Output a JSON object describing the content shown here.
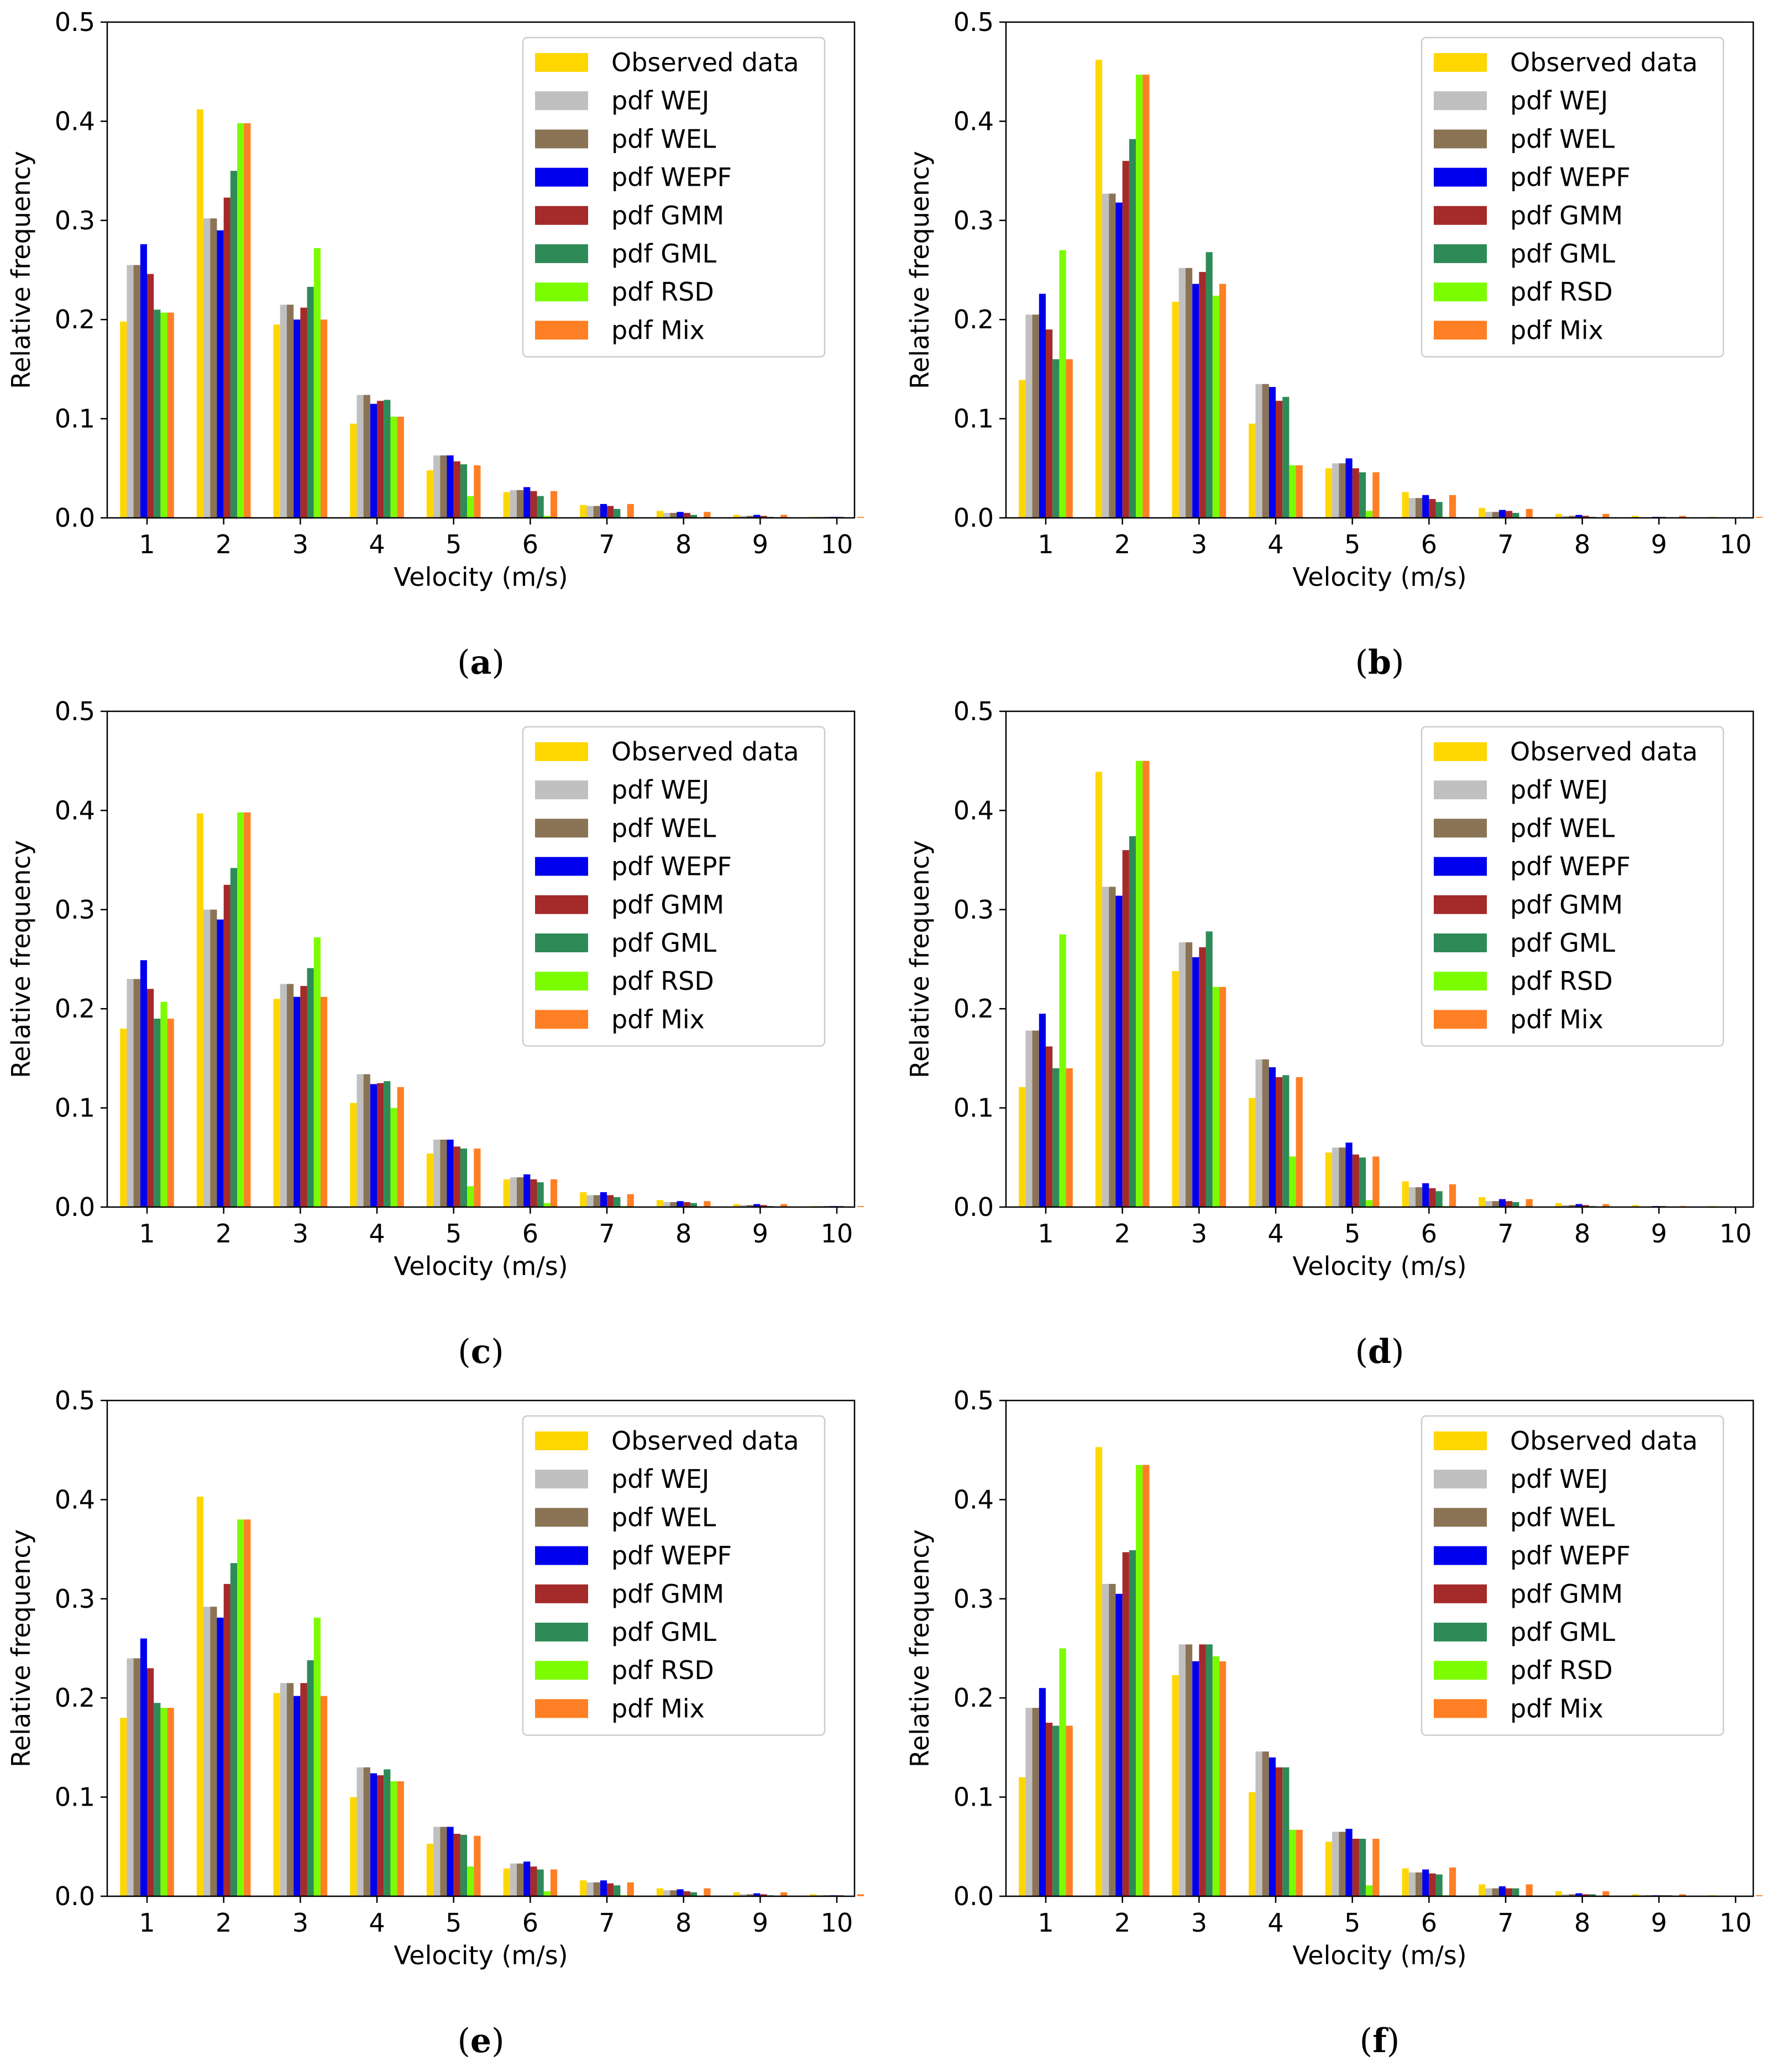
{
  "series_names": [
    "Observed data",
    "pdf WEJ",
    "pdf WEL",
    "pdf WEPF",
    "pdf GMM",
    "pdf GML",
    "pdf RSD",
    "pdf Mix"
  ],
  "series_colors": [
    "#FFD700",
    "#C0C0C0",
    "#8B7355",
    "#0000EE",
    "#A52A2A",
    "#2E8B57",
    "#7CFC00",
    "#FF7F24"
  ],
  "chart_data": [
    {
      "type": "bar",
      "caption": "(a)",
      "xlabel": "Velocity (m/s)",
      "ylabel": "Relative frequency",
      "ylim": [
        0,
        0.5
      ],
      "yticks": [
        "0.0",
        "0.1",
        "0.2",
        "0.3",
        "0.4",
        "0.5"
      ],
      "categories": [
        "1",
        "2",
        "3",
        "4",
        "5",
        "6",
        "7",
        "8",
        "9",
        "10"
      ],
      "legend": "top-right",
      "series": [
        {
          "name": "Observed data",
          "values": [
            0.198,
            0.412,
            0.195,
            0.095,
            0.048,
            0.026,
            0.013,
            0.007,
            0.003,
            0.001
          ]
        },
        {
          "name": "pdf WEJ",
          "values": [
            0.255,
            0.302,
            0.215,
            0.124,
            0.063,
            0.028,
            0.012,
            0.005,
            0.002,
            0.001
          ]
        },
        {
          "name": "pdf WEL",
          "values": [
            0.255,
            0.302,
            0.215,
            0.124,
            0.063,
            0.028,
            0.012,
            0.005,
            0.002,
            0.001
          ]
        },
        {
          "name": "pdf WEPF",
          "values": [
            0.276,
            0.29,
            0.2,
            0.115,
            0.063,
            0.031,
            0.014,
            0.006,
            0.003,
            0.001
          ]
        },
        {
          "name": "pdf GMM",
          "values": [
            0.246,
            0.323,
            0.212,
            0.118,
            0.057,
            0.027,
            0.012,
            0.005,
            0.002,
            0.001
          ]
        },
        {
          "name": "pdf GML",
          "values": [
            0.21,
            0.35,
            0.233,
            0.119,
            0.054,
            0.022,
            0.009,
            0.003,
            0.001,
            0.0005
          ]
        },
        {
          "name": "pdf RSD",
          "values": [
            0.207,
            0.398,
            0.272,
            0.102,
            0.022,
            0.002,
            0.0005,
            0,
            0,
            0
          ]
        },
        {
          "name": "pdf Mix",
          "values": [
            0.207,
            0.398,
            0.2,
            0.102,
            0.053,
            0.027,
            0.014,
            0.006,
            0.003,
            0.001
          ]
        }
      ]
    },
    {
      "type": "bar",
      "caption": "(b)",
      "xlabel": "Velocity (m/s)",
      "ylabel": "Relative frequency",
      "ylim": [
        0,
        0.5
      ],
      "yticks": [
        "0.0",
        "0.1",
        "0.2",
        "0.3",
        "0.4",
        "0.5"
      ],
      "categories": [
        "1",
        "2",
        "3",
        "4",
        "5",
        "6",
        "7",
        "8",
        "9",
        "10"
      ],
      "legend": "top-right",
      "series": [
        {
          "name": "Observed data",
          "values": [
            0.139,
            0.462,
            0.218,
            0.095,
            0.05,
            0.026,
            0.01,
            0.004,
            0.002,
            0.001
          ]
        },
        {
          "name": "pdf WEJ",
          "values": [
            0.205,
            0.327,
            0.252,
            0.135,
            0.055,
            0.02,
            0.006,
            0.002,
            0.0005,
            0
          ]
        },
        {
          "name": "pdf WEL",
          "values": [
            0.205,
            0.327,
            0.252,
            0.135,
            0.055,
            0.02,
            0.006,
            0.002,
            0.0005,
            0
          ]
        },
        {
          "name": "pdf WEPF",
          "values": [
            0.226,
            0.318,
            0.236,
            0.132,
            0.06,
            0.023,
            0.008,
            0.003,
            0.001,
            0
          ]
        },
        {
          "name": "pdf GMM",
          "values": [
            0.19,
            0.36,
            0.248,
            0.118,
            0.05,
            0.019,
            0.007,
            0.002,
            0.001,
            0
          ]
        },
        {
          "name": "pdf GML",
          "values": [
            0.16,
            0.382,
            0.268,
            0.122,
            0.046,
            0.016,
            0.005,
            0.001,
            0,
            0
          ]
        },
        {
          "name": "pdf RSD",
          "values": [
            0.27,
            0.447,
            0.224,
            0.053,
            0.007,
            0.001,
            0,
            0,
            0,
            0
          ]
        },
        {
          "name": "pdf Mix",
          "values": [
            0.16,
            0.447,
            0.236,
            0.053,
            0.046,
            0.023,
            0.009,
            0.004,
            0.002,
            0.001
          ]
        }
      ]
    },
    {
      "type": "bar",
      "caption": "(c)",
      "xlabel": "Velocity (m/s)",
      "ylabel": "Relative frequency",
      "ylim": [
        0,
        0.5
      ],
      "yticks": [
        "0.0",
        "0.1",
        "0.2",
        "0.3",
        "0.4",
        "0.5"
      ],
      "categories": [
        "1",
        "2",
        "3",
        "4",
        "5",
        "6",
        "7",
        "8",
        "9",
        "10"
      ],
      "legend": "top-right",
      "series": [
        {
          "name": "Observed data",
          "values": [
            0.18,
            0.397,
            0.21,
            0.105,
            0.054,
            0.028,
            0.015,
            0.007,
            0.003,
            0.001
          ]
        },
        {
          "name": "pdf WEJ",
          "values": [
            0.23,
            0.3,
            0.225,
            0.134,
            0.068,
            0.03,
            0.012,
            0.005,
            0.002,
            0.001
          ]
        },
        {
          "name": "pdf WEL",
          "values": [
            0.23,
            0.3,
            0.225,
            0.134,
            0.068,
            0.03,
            0.012,
            0.005,
            0.002,
            0.001
          ]
        },
        {
          "name": "pdf WEPF",
          "values": [
            0.249,
            0.29,
            0.212,
            0.124,
            0.068,
            0.033,
            0.015,
            0.006,
            0.003,
            0.001
          ]
        },
        {
          "name": "pdf GMM",
          "values": [
            0.22,
            0.325,
            0.223,
            0.125,
            0.061,
            0.028,
            0.012,
            0.005,
            0.002,
            0.001
          ]
        },
        {
          "name": "pdf GML",
          "values": [
            0.19,
            0.342,
            0.241,
            0.127,
            0.059,
            0.025,
            0.01,
            0.004,
            0.001,
            0.0005
          ]
        },
        {
          "name": "pdf RSD",
          "values": [
            0.207,
            0.398,
            0.272,
            0.1,
            0.021,
            0.004,
            0.001,
            0,
            0,
            0
          ]
        },
        {
          "name": "pdf Mix",
          "values": [
            0.19,
            0.398,
            0.212,
            0.121,
            0.059,
            0.028,
            0.013,
            0.006,
            0.003,
            0.001
          ]
        }
      ]
    },
    {
      "type": "bar",
      "caption": "(d)",
      "xlabel": "Velocity (m/s)",
      "ylabel": "Relative frequency",
      "ylim": [
        0,
        0.5
      ],
      "yticks": [
        "0.0",
        "0.1",
        "0.2",
        "0.3",
        "0.4",
        "0.5"
      ],
      "categories": [
        "1",
        "2",
        "3",
        "4",
        "5",
        "6",
        "7",
        "8",
        "9",
        "10"
      ],
      "legend": "top-right",
      "series": [
        {
          "name": "Observed data",
          "values": [
            0.121,
            0.439,
            0.238,
            0.11,
            0.055,
            0.026,
            0.01,
            0.004,
            0.002,
            0.001
          ]
        },
        {
          "name": "pdf WEJ",
          "values": [
            0.178,
            0.323,
            0.267,
            0.149,
            0.06,
            0.02,
            0.006,
            0.002,
            0.0005,
            0
          ]
        },
        {
          "name": "pdf WEL",
          "values": [
            0.178,
            0.323,
            0.267,
            0.149,
            0.06,
            0.02,
            0.006,
            0.002,
            0.0005,
            0
          ]
        },
        {
          "name": "pdf WEPF",
          "values": [
            0.195,
            0.314,
            0.252,
            0.141,
            0.065,
            0.024,
            0.008,
            0.003,
            0.001,
            0
          ]
        },
        {
          "name": "pdf GMM",
          "values": [
            0.162,
            0.36,
            0.262,
            0.131,
            0.053,
            0.019,
            0.006,
            0.002,
            0.001,
            0
          ]
        },
        {
          "name": "pdf GML",
          "values": [
            0.14,
            0.374,
            0.278,
            0.133,
            0.05,
            0.016,
            0.005,
            0.001,
            0,
            0
          ]
        },
        {
          "name": "pdf RSD",
          "values": [
            0.275,
            0.45,
            0.222,
            0.051,
            0.007,
            0.001,
            0,
            0,
            0,
            0
          ]
        },
        {
          "name": "pdf Mix",
          "values": [
            0.14,
            0.45,
            0.222,
            0.131,
            0.051,
            0.023,
            0.008,
            0.003,
            0.001,
            0
          ]
        }
      ]
    },
    {
      "type": "bar",
      "caption": "(e)",
      "xlabel": "Velocity (m/s)",
      "ylabel": "Relative frequency",
      "ylim": [
        0,
        0.5
      ],
      "yticks": [
        "0.0",
        "0.1",
        "0.2",
        "0.3",
        "0.4",
        "0.5"
      ],
      "categories": [
        "1",
        "2",
        "3",
        "4",
        "5",
        "6",
        "7",
        "8",
        "9",
        "10"
      ],
      "legend": "top-right",
      "series": [
        {
          "name": "Observed data",
          "values": [
            0.18,
            0.403,
            0.205,
            0.1,
            0.053,
            0.028,
            0.016,
            0.008,
            0.004,
            0.002
          ]
        },
        {
          "name": "pdf WEJ",
          "values": [
            0.24,
            0.292,
            0.215,
            0.13,
            0.07,
            0.033,
            0.014,
            0.006,
            0.002,
            0.001
          ]
        },
        {
          "name": "pdf WEL",
          "values": [
            0.24,
            0.292,
            0.215,
            0.13,
            0.07,
            0.033,
            0.014,
            0.006,
            0.002,
            0.001
          ]
        },
        {
          "name": "pdf WEPF",
          "values": [
            0.26,
            0.281,
            0.202,
            0.124,
            0.07,
            0.035,
            0.016,
            0.007,
            0.003,
            0.001
          ]
        },
        {
          "name": "pdf GMM",
          "values": [
            0.23,
            0.315,
            0.215,
            0.122,
            0.063,
            0.03,
            0.013,
            0.005,
            0.002,
            0.001
          ]
        },
        {
          "name": "pdf GML",
          "values": [
            0.195,
            0.336,
            0.238,
            0.128,
            0.062,
            0.027,
            0.011,
            0.004,
            0.001,
            0.0005
          ]
        },
        {
          "name": "pdf RSD",
          "values": [
            0.19,
            0.38,
            0.281,
            0.116,
            0.03,
            0.005,
            0.001,
            0,
            0,
            0
          ]
        },
        {
          "name": "pdf Mix",
          "values": [
            0.19,
            0.38,
            0.202,
            0.116,
            0.061,
            0.027,
            0.014,
            0.008,
            0.004,
            0.002
          ]
        }
      ]
    },
    {
      "type": "bar",
      "caption": "(f)",
      "xlabel": "Velocity (m/s)",
      "ylabel": "Relative frequency",
      "ylim": [
        0,
        0.5
      ],
      "yticks": [
        "0.0",
        "0.1",
        "0.2",
        "0.3",
        "0.4",
        "0.5"
      ],
      "categories": [
        "1",
        "2",
        "3",
        "4",
        "5",
        "6",
        "7",
        "8",
        "9",
        "10"
      ],
      "legend": "top-right",
      "series": [
        {
          "name": "Observed data",
          "values": [
            0.12,
            0.453,
            0.223,
            0.105,
            0.055,
            0.028,
            0.012,
            0.005,
            0.002,
            0.001
          ]
        },
        {
          "name": "pdf WEJ",
          "values": [
            0.19,
            0.315,
            0.254,
            0.146,
            0.065,
            0.024,
            0.008,
            0.002,
            0.001,
            0
          ]
        },
        {
          "name": "pdf WEL",
          "values": [
            0.19,
            0.315,
            0.254,
            0.146,
            0.065,
            0.024,
            0.008,
            0.002,
            0.001,
            0
          ]
        },
        {
          "name": "pdf WEPF",
          "values": [
            0.21,
            0.305,
            0.237,
            0.14,
            0.068,
            0.027,
            0.01,
            0.003,
            0.001,
            0
          ]
        },
        {
          "name": "pdf GMM",
          "values": [
            0.175,
            0.347,
            0.254,
            0.13,
            0.058,
            0.023,
            0.008,
            0.002,
            0.001,
            0
          ]
        },
        {
          "name": "pdf GML",
          "values": [
            0.172,
            0.349,
            0.254,
            0.13,
            0.058,
            0.022,
            0.008,
            0.002,
            0.001,
            0
          ]
        },
        {
          "name": "pdf RSD",
          "values": [
            0.25,
            0.435,
            0.242,
            0.067,
            0.011,
            0.001,
            0,
            0,
            0,
            0
          ]
        },
        {
          "name": "pdf Mix",
          "values": [
            0.172,
            0.435,
            0.237,
            0.067,
            0.058,
            0.029,
            0.012,
            0.005,
            0.002,
            0.001
          ]
        }
      ]
    }
  ]
}
